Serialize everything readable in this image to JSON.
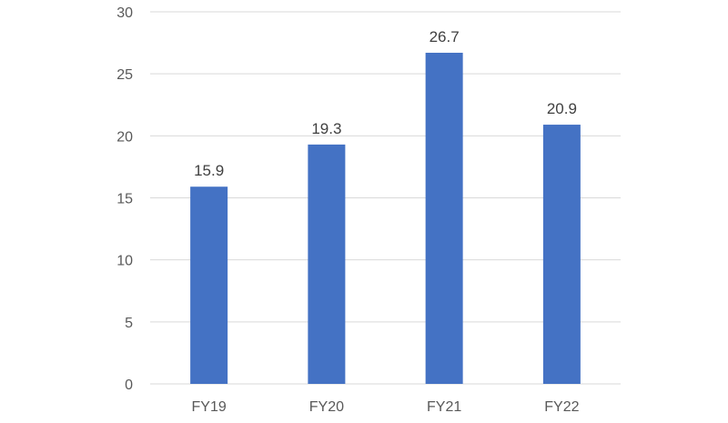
{
  "chart_data": {
    "type": "bar",
    "categories": [
      "FY19",
      "FY20",
      "FY21",
      "FY22"
    ],
    "values": [
      15.9,
      19.3,
      26.7,
      20.9
    ],
    "data_labels": [
      "15.9",
      "19.3",
      "26.7",
      "20.9"
    ],
    "y_ticks": [
      0,
      5,
      10,
      15,
      20,
      25,
      30
    ],
    "ylim": [
      0,
      30
    ],
    "grid": true,
    "legend": "none",
    "title": "",
    "xlabel": "",
    "ylabel": ""
  },
  "colors": {
    "bar": "#4472C4",
    "gridline": "#D9D9D9",
    "axis_text": "#595959",
    "label_text": "#404040"
  }
}
